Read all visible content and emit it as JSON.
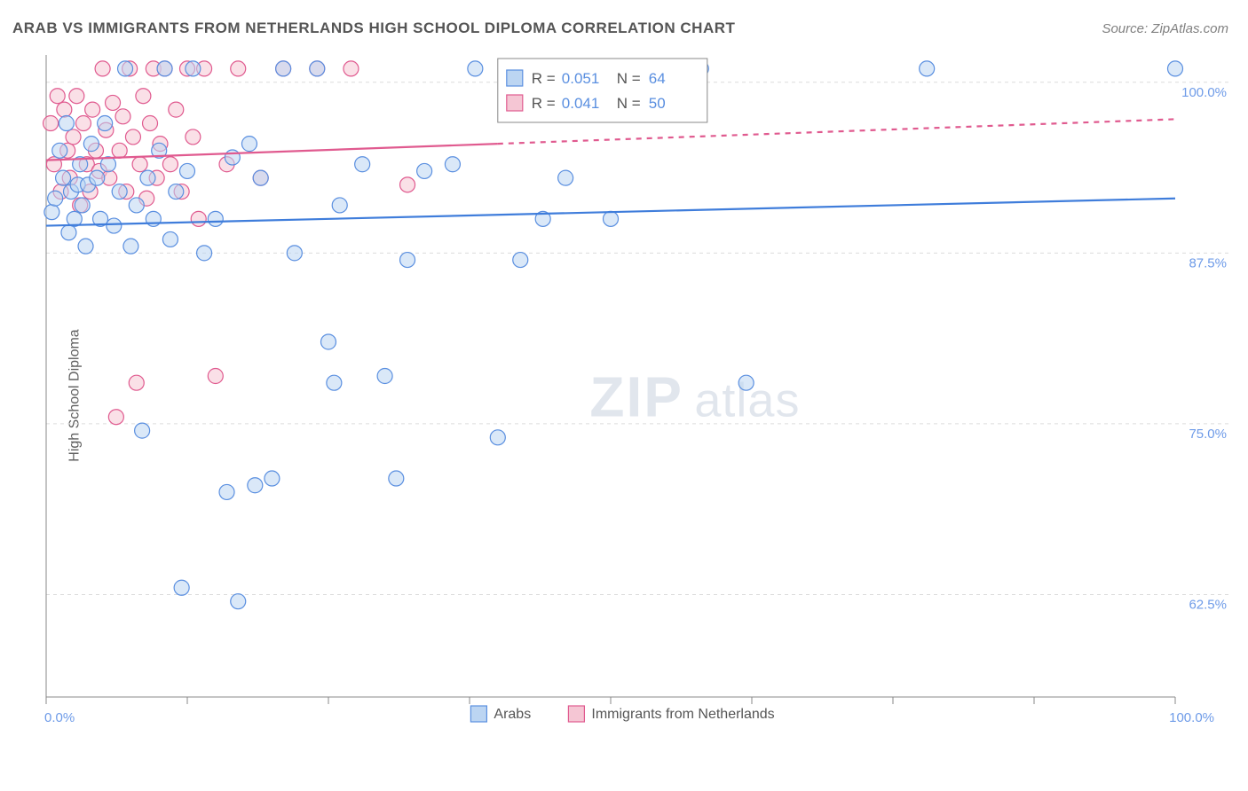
{
  "header": {
    "title": "ARAB VS IMMIGRANTS FROM NETHERLANDS HIGH SCHOOL DIPLOMA CORRELATION CHART",
    "source": "Source: ZipAtlas.com"
  },
  "axes": {
    "ylabel": "High School Diploma",
    "xlim": [
      0,
      100
    ],
    "ylim": [
      55,
      102
    ],
    "xticks": [
      0,
      12.5,
      25,
      37.5,
      50,
      62.5,
      75,
      87.5,
      100
    ],
    "xtick_labels": {
      "0": "0.0%",
      "100": "100.0%"
    },
    "yticks": [
      62.5,
      75,
      87.5,
      100
    ],
    "ytick_labels": {
      "62.5": "62.5%",
      "75": "75.0%",
      "87.5": "87.5%",
      "100": "100.0%"
    }
  },
  "colors": {
    "background": "#ffffff",
    "grid": "#dcdcdc",
    "axis": "#888888",
    "tick_text": "#6e9be8",
    "blue_fill": "#bcd5f2",
    "blue_stroke": "#5a8fe0",
    "pink_fill": "#f5c6d4",
    "pink_stroke": "#e05a8f",
    "trend_blue": "#3f7ddb",
    "trend_pink": "#e05a8f",
    "watermark_text": "ZIPatlas"
  },
  "sizes": {
    "marker_radius": 8.5,
    "marker_stroke": 1.2,
    "trend_width": 2.2,
    "grid_dash": "4,4"
  },
  "correlation_box": {
    "rows": [
      {
        "swatch": "blue",
        "r_label": "R =",
        "r_value": "0.051",
        "n_label": "N =",
        "n_value": "64"
      },
      {
        "swatch": "pink",
        "r_label": "R =",
        "r_value": "0.041",
        "n_label": "N =",
        "n_value": "50"
      }
    ]
  },
  "legend": {
    "series_a": "Arabs",
    "series_b": "Immigrants from Netherlands"
  },
  "series": {
    "blue": {
      "name": "Arabs",
      "points": [
        [
          0.5,
          90.5
        ],
        [
          0.8,
          91.5
        ],
        [
          1.2,
          95
        ],
        [
          1.5,
          93
        ],
        [
          1.8,
          97
        ],
        [
          2.0,
          89
        ],
        [
          2.2,
          92
        ],
        [
          2.5,
          90
        ],
        [
          2.8,
          92.5
        ],
        [
          3.0,
          94
        ],
        [
          3.2,
          91
        ],
        [
          3.5,
          88
        ],
        [
          3.7,
          92.5
        ],
        [
          4.0,
          95.5
        ],
        [
          4.5,
          93
        ],
        [
          4.8,
          90
        ],
        [
          5.2,
          97
        ],
        [
          5.5,
          94
        ],
        [
          6.0,
          89.5
        ],
        [
          6.5,
          92
        ],
        [
          7.0,
          101
        ],
        [
          7.5,
          88
        ],
        [
          8.0,
          91
        ],
        [
          8.5,
          74.5
        ],
        [
          9.0,
          93
        ],
        [
          9.5,
          90
        ],
        [
          10,
          95
        ],
        [
          10.5,
          101
        ],
        [
          11,
          88.5
        ],
        [
          11.5,
          92
        ],
        [
          12,
          63
        ],
        [
          12.5,
          93.5
        ],
        [
          13,
          101
        ],
        [
          14,
          87.5
        ],
        [
          15,
          90
        ],
        [
          16,
          70
        ],
        [
          16.5,
          94.5
        ],
        [
          17,
          62
        ],
        [
          18,
          95.5
        ],
        [
          18.5,
          70.5
        ],
        [
          19,
          93
        ],
        [
          20,
          71
        ],
        [
          21,
          101
        ],
        [
          22,
          87.5
        ],
        [
          24,
          101
        ],
        [
          25,
          81
        ],
        [
          25.5,
          78
        ],
        [
          26,
          91
        ],
        [
          28,
          94
        ],
        [
          30,
          78.5
        ],
        [
          31,
          71
        ],
        [
          32,
          87
        ],
        [
          33.5,
          93.5
        ],
        [
          36,
          94
        ],
        [
          38,
          101
        ],
        [
          40,
          74
        ],
        [
          42,
          87
        ],
        [
          44,
          90
        ],
        [
          46,
          93
        ],
        [
          50,
          90
        ],
        [
          58,
          101
        ],
        [
          62,
          78
        ],
        [
          78,
          101
        ],
        [
          100,
          101
        ]
      ],
      "trend": {
        "y0": 89.5,
        "y1": 91.5,
        "x_solid_end": 100
      }
    },
    "pink": {
      "name": "Immigrants from Netherlands",
      "points": [
        [
          0.4,
          97
        ],
        [
          0.7,
          94
        ],
        [
          1.0,
          99
        ],
        [
          1.3,
          92
        ],
        [
          1.6,
          98
        ],
        [
          1.9,
          95
        ],
        [
          2.1,
          93
        ],
        [
          2.4,
          96
        ],
        [
          2.7,
          99
        ],
        [
          3.0,
          91
        ],
        [
          3.3,
          97
        ],
        [
          3.6,
          94
        ],
        [
          3.9,
          92
        ],
        [
          4.1,
          98
        ],
        [
          4.4,
          95
        ],
        [
          4.7,
          93.5
        ],
        [
          5.0,
          101
        ],
        [
          5.3,
          96.5
        ],
        [
          5.6,
          93
        ],
        [
          5.9,
          98.5
        ],
        [
          6.2,
          75.5
        ],
        [
          6.5,
          95
        ],
        [
          6.8,
          97.5
        ],
        [
          7.1,
          92
        ],
        [
          7.4,
          101
        ],
        [
          7.7,
          96
        ],
        [
          8.0,
          78
        ],
        [
          8.3,
          94
        ],
        [
          8.6,
          99
        ],
        [
          8.9,
          91.5
        ],
        [
          9.2,
          97
        ],
        [
          9.5,
          101
        ],
        [
          9.8,
          93
        ],
        [
          10.1,
          95.5
        ],
        [
          10.5,
          101
        ],
        [
          11,
          94
        ],
        [
          11.5,
          98
        ],
        [
          12,
          92
        ],
        [
          12.5,
          101
        ],
        [
          13,
          96
        ],
        [
          13.5,
          90
        ],
        [
          14,
          101
        ],
        [
          15,
          78.5
        ],
        [
          16,
          94
        ],
        [
          17,
          101
        ],
        [
          19,
          93
        ],
        [
          21,
          101
        ],
        [
          24,
          101
        ],
        [
          27,
          101
        ],
        [
          32,
          92.5
        ]
      ],
      "trend": {
        "y0": 94.3,
        "y1": 97.3,
        "x_solid_end": 40
      }
    }
  }
}
